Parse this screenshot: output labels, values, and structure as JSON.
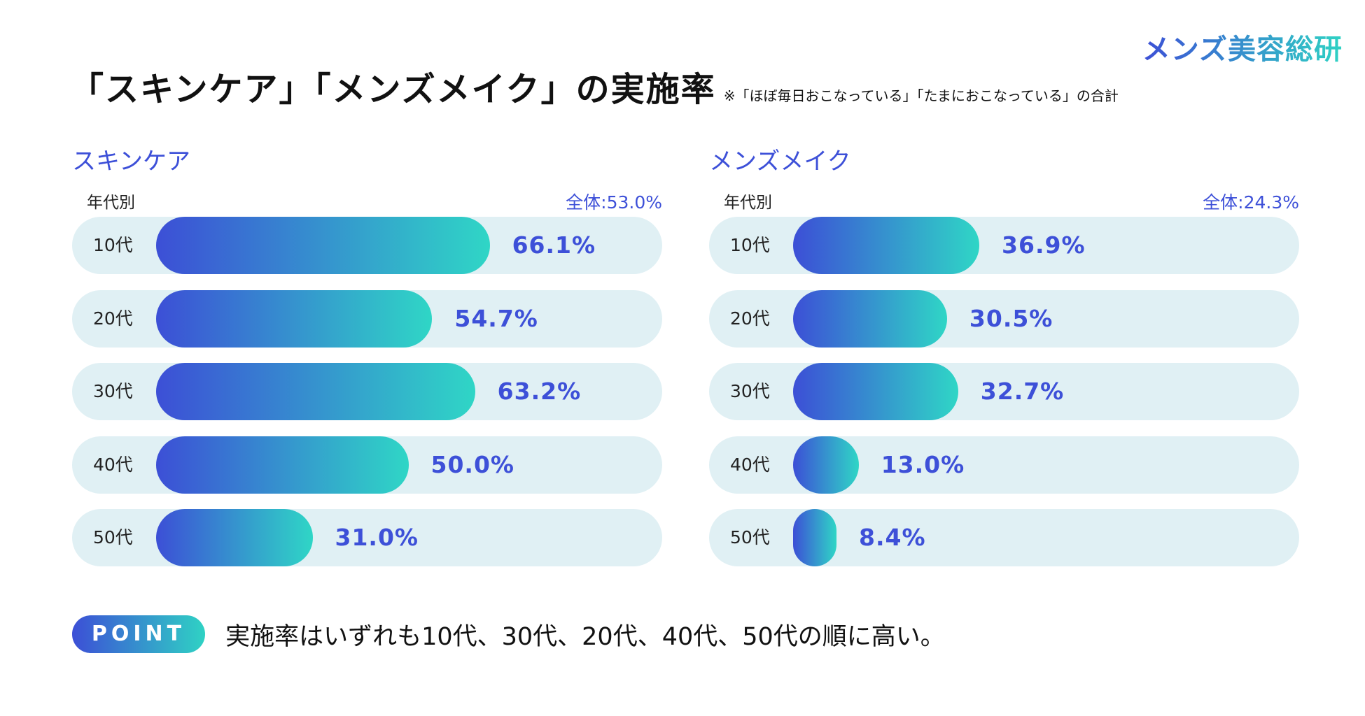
{
  "brand": {
    "logo_text": "メンズ美容総研"
  },
  "title": {
    "main": "「スキンケア」「メンズメイク」の実施率",
    "note": "※「ほぼ毎日おこなっている」「たまにおこなっている」の合計"
  },
  "colors": {
    "accent": "#3d50d8",
    "gradient_start": "#3c4fd6",
    "gradient_end": "#2fd6c6",
    "track": "#e0f0f4"
  },
  "chart_data": [
    {
      "type": "bar",
      "orientation": "horizontal",
      "title": "スキンケア",
      "subtitle": "年代別",
      "overall_label": "全体:53.0%",
      "categories": [
        "10代",
        "20代",
        "30代",
        "40代",
        "50代"
      ],
      "values": [
        66.1,
        54.7,
        63.2,
        50.0,
        31.0
      ],
      "value_labels": [
        "66.1%",
        "54.7%",
        "63.2%",
        "50.0%",
        "31.0%"
      ],
      "unit": "%",
      "xlim": [
        0,
        100
      ]
    },
    {
      "type": "bar",
      "orientation": "horizontal",
      "title": "メンズメイク",
      "subtitle": "年代別",
      "overall_label": "全体:24.3%",
      "categories": [
        "10代",
        "20代",
        "30代",
        "40代",
        "50代"
      ],
      "values": [
        36.9,
        30.5,
        32.7,
        13.0,
        8.4
      ],
      "value_labels": [
        "36.9%",
        "30.5%",
        "32.7%",
        "13.0%",
        "8.4%"
      ],
      "unit": "%",
      "xlim": [
        0,
        100
      ]
    }
  ],
  "point": {
    "badge": "POINT",
    "text": "実施率はいずれも10代、30代、20代、40代、50代の順に高い。"
  }
}
